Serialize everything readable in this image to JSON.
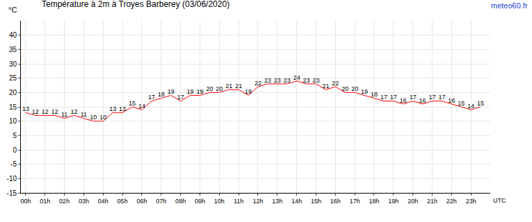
{
  "chart_data": {
    "type": "line",
    "title": "Température à 2m à Troyes Barberey (03/06/2020)",
    "source": "meteo60.fr",
    "y_label": "°C",
    "x_label": "UTC",
    "x": [
      0,
      0.5,
      1,
      1.5,
      2,
      2.5,
      3,
      3.5,
      4,
      4.5,
      5,
      5.5,
      6,
      6.5,
      7,
      7.5,
      8,
      8.5,
      9,
      9.5,
      10,
      10.5,
      11,
      11.5,
      12,
      12.5,
      13,
      13.5,
      14,
      14.5,
      15,
      15.5,
      16,
      16.5,
      17,
      17.5,
      18,
      18.5,
      19,
      19.5,
      20,
      20.5,
      21,
      21.5,
      22,
      22.5,
      23,
      23.5
    ],
    "values": [
      13,
      12,
      12,
      12,
      11,
      12,
      11,
      10,
      10,
      13,
      13,
      15,
      14,
      17,
      18,
      19,
      17,
      19,
      19,
      20,
      20,
      21,
      21,
      19,
      22,
      23,
      23,
      23,
      24,
      23,
      23,
      21,
      22,
      20,
      20,
      19,
      18,
      17,
      17,
      16,
      17,
      16,
      17,
      17,
      16,
      15,
      14,
      15
    ],
    "color": "#ff0000",
    "data_labels": true,
    "grid": true,
    "xlim": [
      -0.25,
      24
    ],
    "xticks": [
      {
        "value": 0,
        "label": "00h"
      },
      {
        "value": 1,
        "label": "01h"
      },
      {
        "value": 2,
        "label": "02h"
      },
      {
        "value": 3,
        "label": "03h"
      },
      {
        "value": 4,
        "label": "04h"
      },
      {
        "value": 5,
        "label": "05h"
      },
      {
        "value": 6,
        "label": "06h"
      },
      {
        "value": 7,
        "label": "07h"
      },
      {
        "value": 8,
        "label": "08h"
      },
      {
        "value": 9,
        "label": "09h"
      },
      {
        "value": 10,
        "label": "10h"
      },
      {
        "value": 11,
        "label": "11h"
      },
      {
        "value": 12,
        "label": "12h"
      },
      {
        "value": 13,
        "label": "13h"
      },
      {
        "value": 14,
        "label": "14h"
      },
      {
        "value": 15,
        "label": "15h"
      },
      {
        "value": 16,
        "label": "16h"
      },
      {
        "value": 17,
        "label": "17h"
      },
      {
        "value": 18,
        "label": "18h"
      },
      {
        "value": 19,
        "label": "19h"
      },
      {
        "value": 20,
        "label": "20h"
      },
      {
        "value": 21,
        "label": "21h"
      },
      {
        "value": 22,
        "label": "22h"
      },
      {
        "value": 23,
        "label": "23h"
      }
    ],
    "ylim": [
      -15,
      45
    ],
    "yticks": [
      -15,
      -10,
      -5,
      0,
      5,
      10,
      15,
      20,
      25,
      30,
      35,
      40
    ]
  }
}
